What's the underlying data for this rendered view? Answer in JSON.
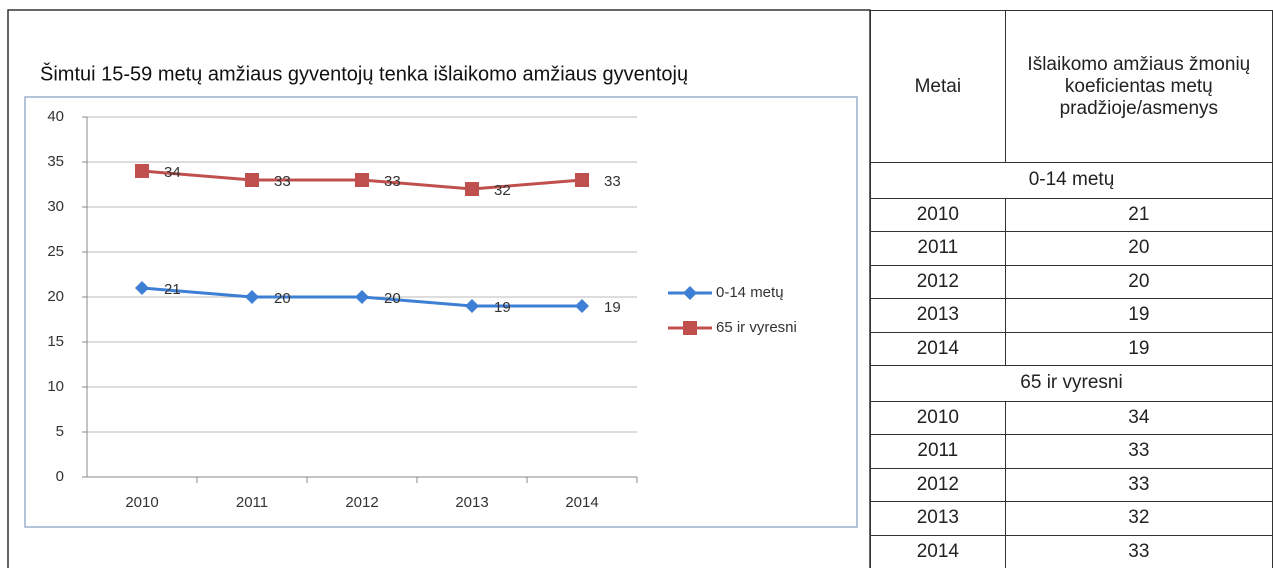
{
  "chart_data": {
    "type": "line",
    "title": "Šimtui 15-59 metų amžiaus gyventojų tenka išlaikomo amžiaus gyventojų",
    "categories": [
      "2010",
      "2011",
      "2012",
      "2013",
      "2014"
    ],
    "series": [
      {
        "name": "0-14 metų",
        "color": "#3d7fd4",
        "marker": "diamond",
        "values": [
          21,
          20,
          20,
          19,
          19
        ]
      },
      {
        "name": "65 ir vyresni",
        "color": "#c0504d",
        "marker": "square",
        "values": [
          34,
          33,
          33,
          32,
          33
        ]
      }
    ],
    "ylim": [
      0,
      40
    ],
    "yticks": [
      0,
      5,
      10,
      15,
      20,
      25,
      30,
      35,
      40
    ],
    "grid": true,
    "legend": "right"
  },
  "table": {
    "header": [
      "Metai",
      "Išlaikomo amžiaus žmonių koeficientas metų pradžioje/asmenys"
    ],
    "groups": [
      {
        "label": "0-14 metų",
        "rows": [
          [
            "2010",
            "21"
          ],
          [
            "2011",
            "20"
          ],
          [
            "2012",
            "20"
          ],
          [
            "2013",
            "19"
          ],
          [
            "2014",
            "19"
          ]
        ]
      },
      {
        "label": "65 ir vyresni",
        "rows": [
          [
            "2010",
            "34"
          ],
          [
            "2011",
            "33"
          ],
          [
            "2012",
            "33"
          ],
          [
            "2013",
            "32"
          ],
          [
            "2014",
            "33"
          ]
        ]
      }
    ]
  }
}
